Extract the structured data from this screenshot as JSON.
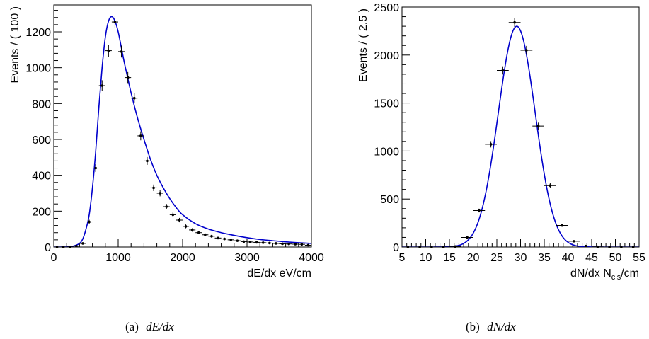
{
  "chart_data": [
    {
      "type": "scatter",
      "xlabel": "dE/dx eV/cm",
      "ylabel": "Events / ( 100 )",
      "xlim": [
        0,
        4000
      ],
      "ylim": [
        0,
        1350
      ],
      "xticks": [
        0,
        1000,
        2000,
        3000,
        4000
      ],
      "yticks": [
        0,
        200,
        400,
        600,
        800,
        1000,
        1200
      ],
      "grid": false,
      "caption_label": "(a)",
      "caption_math": "dE/dx",
      "series": [
        {
          "kind": "data-points-with-errors",
          "x_bin_width": 100,
          "x": [
            50,
            150,
            250,
            350,
            450,
            550,
            650,
            750,
            850,
            950,
            1050,
            1150,
            1250,
            1350,
            1450,
            1550,
            1650,
            1750,
            1850,
            1950,
            2050,
            2150,
            2250,
            2350,
            2450,
            2550,
            2650,
            2750,
            2850,
            2950,
            3050,
            3150,
            3250,
            3350,
            3450,
            3550,
            3650,
            3750,
            3850,
            3950
          ],
          "y": [
            0,
            0,
            1,
            5,
            20,
            140,
            440,
            900,
            1095,
            1255,
            1090,
            945,
            830,
            620,
            480,
            330,
            300,
            225,
            180,
            150,
            115,
            95,
            80,
            68,
            60,
            50,
            45,
            40,
            35,
            30,
            28,
            26,
            24,
            22,
            20,
            18,
            17,
            16,
            15,
            10
          ]
        },
        {
          "kind": "fit-curve",
          "color": "#0000cc",
          "x": [
            0,
            100,
            200,
            300,
            400,
            450,
            500,
            550,
            600,
            650,
            700,
            750,
            800,
            850,
            900,
            950,
            1000,
            1050,
            1100,
            1150,
            1200,
            1300,
            1400,
            1500,
            1600,
            1700,
            1800,
            1900,
            2000,
            2200,
            2400,
            2600,
            2800,
            3000,
            3200,
            3400,
            3600,
            3800,
            4000
          ],
          "y": [
            0,
            0,
            1,
            5,
            20,
            45,
            100,
            180,
            330,
            530,
            780,
            1000,
            1170,
            1260,
            1285,
            1260,
            1200,
            1110,
            1020,
            940,
            860,
            720,
            600,
            490,
            400,
            330,
            270,
            220,
            180,
            130,
            100,
            80,
            65,
            52,
            42,
            35,
            29,
            24,
            20
          ]
        }
      ]
    },
    {
      "type": "scatter",
      "xlabel": "dN/dx N",
      "xlabel_sub": "cls",
      "xlabel_suffix": "/cm",
      "ylabel": "Events / ( 2.5 )",
      "xlim": [
        5,
        55
      ],
      "ylim": [
        0,
        2500
      ],
      "xticks": [
        5,
        10,
        15,
        20,
        25,
        30,
        35,
        40,
        45,
        50,
        55
      ],
      "yticks": [
        0,
        500,
        1000,
        1500,
        2000,
        2500
      ],
      "grid": false,
      "caption_label": "(b)",
      "caption_math": "dN/dx",
      "series": [
        {
          "kind": "data-points-with-errors",
          "x_bin_width": 2.5,
          "x": [
            6.25,
            8.75,
            11.25,
            13.75,
            16.25,
            18.75,
            21.25,
            23.75,
            26.25,
            28.75,
            31.25,
            33.75,
            36.25,
            38.75,
            41.25,
            43.75,
            46.25,
            48.75,
            51.25,
            53.75
          ],
          "y": [
            0,
            0,
            0,
            0,
            5,
            100,
            380,
            1070,
            1840,
            2340,
            2050,
            1260,
            640,
            225,
            60,
            10,
            2,
            0,
            0,
            0
          ]
        },
        {
          "kind": "fit-curve",
          "color": "#0000cc",
          "mean": 29.2,
          "sigma": 3.9,
          "amplitude": 2300
        }
      ]
    }
  ]
}
